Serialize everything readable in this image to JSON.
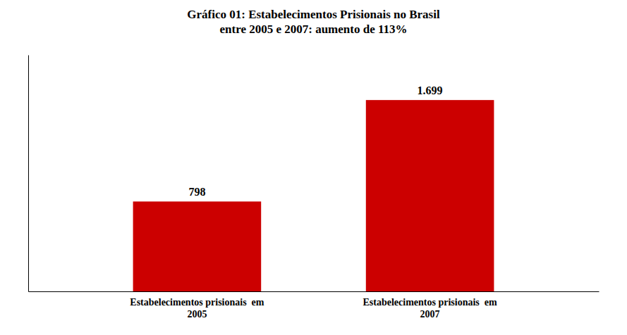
{
  "chart_data": {
    "type": "bar",
    "title": "Gráfico 01: Estabelecimentos Prisionais no Brasil\nentre 2005 e 2007: aumento de 113%",
    "categories": [
      "Estabelecimentos prisionais  em\n2005",
      "Estabelecimentos prisionais  em\n2007"
    ],
    "values": [
      798,
      1699
    ],
    "value_labels": [
      "798",
      "1.699"
    ],
    "color": "#CC0000",
    "ylim": [
      0,
      2100
    ],
    "data_labels": true,
    "tick_labels": "x"
  }
}
